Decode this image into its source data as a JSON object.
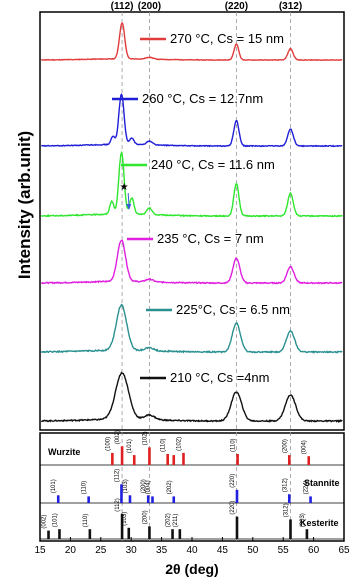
{
  "chart_data": {
    "type": "line",
    "xlabel": "2θ (deg)",
    "ylabel": "Intensity (arb.unit)",
    "xlim": [
      15,
      65
    ],
    "x_ticks": [
      "15",
      "20",
      "25",
      "30",
      "35",
      "40",
      "45",
      "50",
      "55",
      "60",
      "65"
    ],
    "peak_labels": [
      {
        "label": "(112)",
        "x": 28.5
      },
      {
        "label": "(200)",
        "x": 33.0
      },
      {
        "label": "(220)",
        "x": 47.3
      },
      {
        "label": "(312)",
        "x": 56.2
      }
    ],
    "series": [
      {
        "name": "270 °C, Cs = 15 nm",
        "color": "#e23b3b",
        "peaks": [
          [
            28.5,
            0.95,
            0.6
          ],
          [
            33.0,
            0.05,
            0.8
          ],
          [
            47.3,
            0.42,
            0.55
          ],
          [
            56.2,
            0.3,
            0.6
          ]
        ],
        "noise": 0.015
      },
      {
        "name": "260 °C, Cs = 12.7nm",
        "color": "#1f1fd8",
        "peaks": [
          [
            27.0,
            0.15,
            0.45
          ],
          [
            28.4,
            0.95,
            0.6
          ],
          [
            30.1,
            0.12,
            0.5
          ],
          [
            33.0,
            0.07,
            0.7
          ],
          [
            47.3,
            0.48,
            0.6
          ],
          [
            56.2,
            0.32,
            0.65
          ]
        ],
        "noise": 0.015
      },
      {
        "name": "240 °C, Cs = 11.6 nm",
        "color": "#2ee62e",
        "peaks": [
          [
            26.8,
            0.2,
            0.45
          ],
          [
            28.4,
            0.95,
            0.6
          ],
          [
            30.1,
            0.25,
            0.5
          ],
          [
            33.0,
            0.1,
            0.6
          ],
          [
            47.3,
            0.5,
            0.6
          ],
          [
            56.2,
            0.35,
            0.65
          ]
        ],
        "noise": 0.015
      },
      {
        "name": "235 °C, Cs = 7 nm",
        "color": "#e01fe0",
        "peaks": [
          [
            28.4,
            0.75,
            0.95
          ],
          [
            33.0,
            0.05,
            0.8
          ],
          [
            47.3,
            0.45,
            0.8
          ],
          [
            56.2,
            0.3,
            0.8
          ]
        ],
        "noise": 0.02
      },
      {
        "name": "225°C, Cs = 6.5 nm",
        "color": "#2a9090",
        "peaks": [
          [
            28.4,
            0.75,
            1.2
          ],
          [
            33.0,
            0.05,
            1.0
          ],
          [
            47.3,
            0.48,
            0.95
          ],
          [
            56.2,
            0.35,
            0.95
          ]
        ],
        "noise": 0.02
      },
      {
        "name": "210 °C, Cs =4nm",
        "color": "#111111",
        "peaks": [
          [
            28.5,
            0.8,
            1.5
          ],
          [
            33.0,
            0.08,
            1.2
          ],
          [
            47.3,
            0.5,
            1.2
          ],
          [
            56.2,
            0.45,
            1.2
          ]
        ],
        "noise": 0.02
      }
    ],
    "annotation": {
      "symbol": "★",
      "x": 29.5,
      "series": "240 °C, Cs = 11.6 nm"
    },
    "reference_patterns": [
      {
        "name": "Wurzite",
        "color": "#e02020",
        "lines": [
          {
            "x": 26.9,
            "h": 0.55,
            "hkl": "(100)"
          },
          {
            "x": 28.5,
            "h": 0.85,
            "hkl": "(002)"
          },
          {
            "x": 30.5,
            "h": 0.45,
            "hkl": "(101)"
          },
          {
            "x": 33.0,
            "h": 0.8,
            "hkl": "(102)"
          },
          {
            "x": 36.0,
            "h": 0.5,
            "hkl": "(110)"
          },
          {
            "x": 37.0,
            "h": 0.45,
            "hkl": ""
          },
          {
            "x": 38.6,
            "h": 0.55,
            "hkl": "(102)"
          },
          {
            "x": 47.5,
            "h": 0.5,
            "hkl": "(110)"
          },
          {
            "x": 56.0,
            "h": 0.45,
            "hkl": "(200)"
          },
          {
            "x": 59.2,
            "h": 0.4,
            "hkl": "(004)"
          }
        ]
      },
      {
        "name": "Stannite",
        "color": "#2020e0",
        "lines": [
          {
            "x": 18.0,
            "h": 0.35,
            "hkl": "(101)"
          },
          {
            "x": 23.0,
            "h": 0.3,
            "hkl": "(110)"
          },
          {
            "x": 28.4,
            "h": 0.85,
            "hkl": "(112)"
          },
          {
            "x": 29.8,
            "h": 0.35,
            "hkl": "(103)"
          },
          {
            "x": 32.8,
            "h": 0.35,
            "hkl": "(200)"
          },
          {
            "x": 33.5,
            "h": 0.3,
            "hkl": "(004)"
          },
          {
            "x": 37.0,
            "h": 0.3,
            "hkl": "(202)"
          },
          {
            "x": 47.4,
            "h": 0.6,
            "hkl": "(220)"
          },
          {
            "x": 56.0,
            "h": 0.4,
            "hkl": "(312)"
          },
          {
            "x": 59.5,
            "h": 0.3,
            "hkl": "(224)"
          }
        ]
      },
      {
        "name": "Kesterite",
        "color": "#111111",
        "lines": [
          {
            "x": 16.4,
            "h": 0.3,
            "hkl": "(002)"
          },
          {
            "x": 18.2,
            "h": 0.35,
            "hkl": "(101)"
          },
          {
            "x": 23.2,
            "h": 0.35,
            "hkl": "(110)"
          },
          {
            "x": 28.5,
            "h": 0.9,
            "hkl": "(112)"
          },
          {
            "x": 29.6,
            "h": 0.4,
            "hkl": "(103)"
          },
          {
            "x": 33.0,
            "h": 0.45,
            "hkl": "(200)"
          },
          {
            "x": 36.8,
            "h": 0.35,
            "hkl": "(202)"
          },
          {
            "x": 38.0,
            "h": 0.35,
            "hkl": "(211)"
          },
          {
            "x": 47.4,
            "h": 0.8,
            "hkl": "(220)"
          },
          {
            "x": 56.2,
            "h": 0.7,
            "hkl": "(312)"
          },
          {
            "x": 58.9,
            "h": 0.35,
            "hkl": "(303)"
          }
        ]
      }
    ]
  }
}
